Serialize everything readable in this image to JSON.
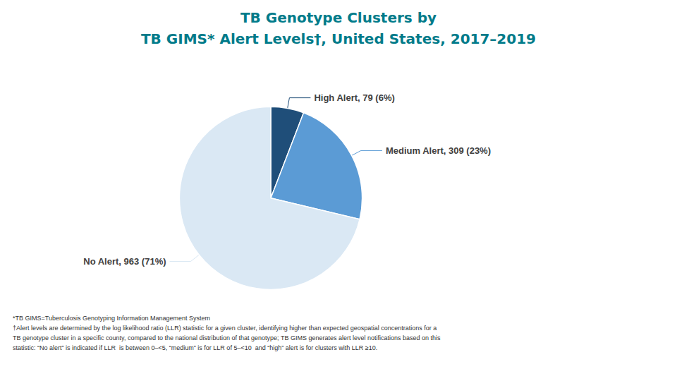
{
  "chart_data": {
    "type": "pie",
    "title": "TB Genotype Clusters by",
    "subtitle": "TB GIMS* Alert Levels†, United States, 2017–2019",
    "categories": [
      "High Alert, 79 (6%)",
      "Medium Alert, 309 (23%)",
      "No Alert, 963 (71%)"
    ],
    "values": [
      79,
      309,
      963
    ],
    "colors": [
      "#1F4E79",
      "#5B9BD5",
      "#DAE8F4"
    ],
    "annotations": [
      "*TB GIMS=Tuberculosis Genotyping Information Management System",
      "†Alert levels are determined by the log likelihood ratio (LLR) statistic for a given cluster, identifying higher than expected geospatial concentrations for a",
      "TB genotype cluster in a specific county, compared to the national distribution of that genotype; TB GIMS generates alert level notifications based on this",
      "statistic: “No alert” is indicated if LLR  is between 0–<5, “medium” is for LLR of 5–<10  and “high” alert is for clusters with LLR ≥10."
    ]
  }
}
